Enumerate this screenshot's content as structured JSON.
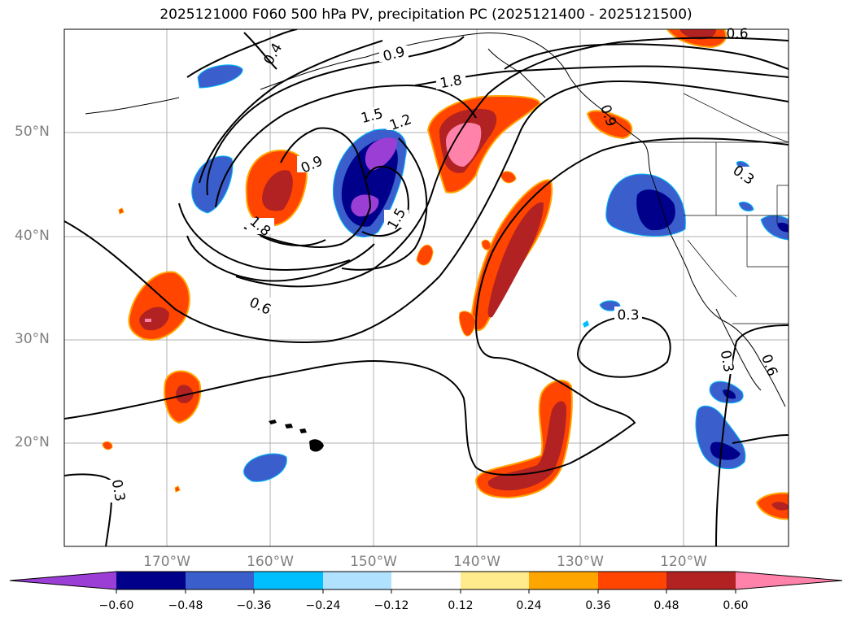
{
  "title": "2025121000 F060 500 hPa PV, precipitation PC (2025121400 - 2025121500)",
  "latitude_labels": [
    "50°N",
    "40°N",
    "30°N",
    "20°N"
  ],
  "longitude_labels": [
    "170°W",
    "160°W",
    "150°W",
    "140°W",
    "130°W",
    "120°W"
  ],
  "contour_labels": [
    "0.9",
    "1.8",
    "1.5",
    "1.2",
    "0.9",
    "1.8",
    "1.5",
    "0.6",
    "0.3",
    "0.3",
    "0.3",
    "0.3",
    "0.6",
    "0.4",
    "0.9",
    "0.6"
  ],
  "colorbar": {
    "tick_labels": [
      "−0.60",
      "−0.48",
      "−0.36",
      "−0.24",
      "−0.12",
      "0.12",
      "0.24",
      "0.36",
      "0.48",
      "0.60"
    ],
    "colors": [
      "#9b3ed6",
      "#00008b",
      "#3a5fcd",
      "#00bfff",
      "#b0e2ff",
      "#ffffff",
      "#ffeb8c",
      "#ffa500",
      "#ff4500",
      "#b22222",
      "#ff82ab",
      "#ff82ab"
    ]
  }
}
